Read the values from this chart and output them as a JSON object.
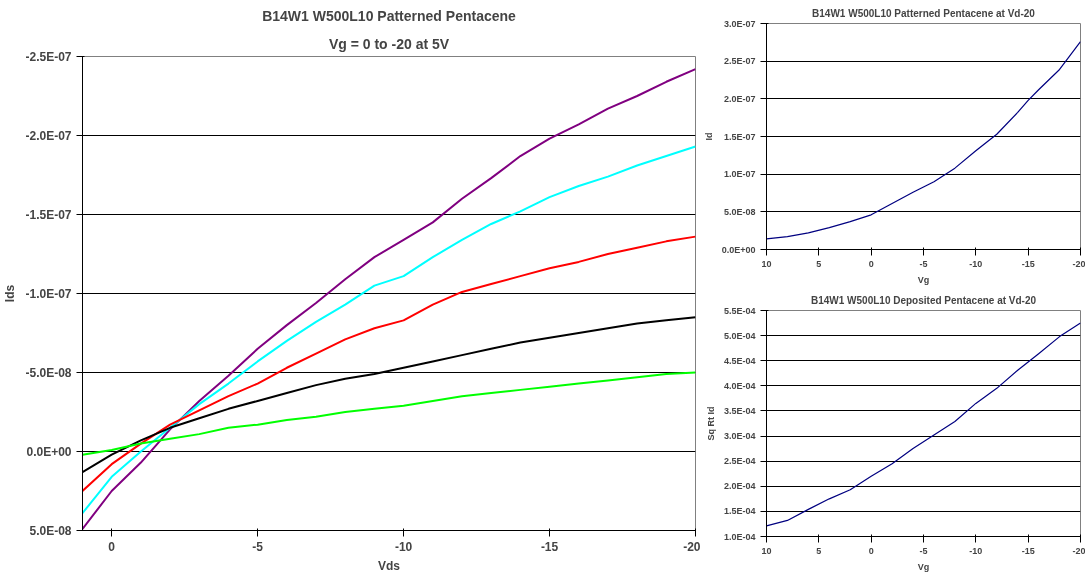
{
  "chart_data": [
    {
      "type": "line",
      "title": "B14W1 W500L10 Patterned Pentacene",
      "subtitle": "Vg = 0 to -20 at 5V",
      "xlabel": "Vds",
      "ylabel": "Ids",
      "x": [
        1,
        0,
        -1,
        -2,
        -3,
        -4,
        -5,
        -6,
        -7,
        -8,
        -9,
        -10,
        -11,
        -12,
        -13,
        -14,
        -15,
        -16,
        -17,
        -18,
        -19,
        -20
      ],
      "series": [
        {
          "color": "#800080",
          "values": [
            4.9e-08,
            2.5e-08,
            7e-09,
            -1.4e-08,
            -3.2e-08,
            -4.8e-08,
            -6.5e-08,
            -8e-08,
            -9.4e-08,
            -1.09e-07,
            -1.23e-07,
            -1.34e-07,
            -1.45e-07,
            -1.6e-07,
            -1.73e-07,
            -1.87e-07,
            -1.98e-07,
            -2.07e-07,
            -2.17e-07,
            -2.25e-07,
            -2.34e-07,
            -2.42e-07
          ]
        },
        {
          "color": "#00ffff",
          "values": [
            3.9e-08,
            1.6e-08,
            0.0,
            -1.5e-08,
            -3e-08,
            -4.3e-08,
            -5.7e-08,
            -7e-08,
            -8.2e-08,
            -9.3e-08,
            -1.05e-07,
            -1.11e-07,
            -1.23e-07,
            -1.34e-07,
            -1.44e-07,
            -1.52e-07,
            -1.61e-07,
            -1.68e-07,
            -1.74e-07,
            -1.81e-07,
            -1.87e-07,
            -1.93e-07
          ]
        },
        {
          "color": "#ff0000",
          "values": [
            2.5e-08,
            8e-09,
            -5e-09,
            -1.7e-08,
            -2.6e-08,
            -3.5e-08,
            -4.3e-08,
            -5.3e-08,
            -6.2e-08,
            -7.1e-08,
            -7.8e-08,
            -8.3e-08,
            -9.3e-08,
            -1.01e-07,
            -1.06e-07,
            -1.11e-07,
            -1.16e-07,
            -1.2e-07,
            -1.25e-07,
            -1.29e-07,
            -1.33e-07,
            -1.36e-07
          ]
        },
        {
          "color": "#000000",
          "values": [
            1.3e-08,
            2e-09,
            -7e-09,
            -1.5e-08,
            -2.1e-08,
            -2.7e-08,
            -3.2e-08,
            -3.7e-08,
            -4.2e-08,
            -4.6e-08,
            -4.9e-08,
            -5.3e-08,
            -5.7e-08,
            -6.1e-08,
            -6.5e-08,
            -6.9e-08,
            -7.2e-08,
            -7.5e-08,
            -7.8e-08,
            -8.1e-08,
            -8.3e-08,
            -8.5e-08
          ]
        },
        {
          "color": "#00ff00",
          "values": [
            2e-09,
            -1e-09,
            -5e-09,
            -8e-09,
            -1.1e-08,
            -1.5e-08,
            -1.7e-08,
            -2e-08,
            -2.2e-08,
            -2.5e-08,
            -2.7e-08,
            -2.9e-08,
            -3.2e-08,
            -3.5e-08,
            -3.7e-08,
            -3.9e-08,
            -4.1e-08,
            -4.3e-08,
            -4.5e-08,
            -4.7e-08,
            -4.9e-08,
            -5e-08
          ]
        }
      ],
      "xlim": [
        1,
        -20
      ],
      "ylim": [
        5e-08,
        -2.5e-07
      ],
      "xticks": [
        0,
        -5,
        -10,
        -15,
        -20
      ],
      "yticks": [
        {
          "value": -2.5e-07,
          "label": "-2.5E-07"
        },
        {
          "value": -2e-07,
          "label": "-2.0E-07"
        },
        {
          "value": -1.5e-07,
          "label": "-1.5E-07"
        },
        {
          "value": -1e-07,
          "label": "-1.0E-07"
        },
        {
          "value": -5e-08,
          "label": "-5.0E-08"
        },
        {
          "value": 0,
          "label": "0.0E+00"
        },
        {
          "value": 5e-08,
          "label": "5.0E-08"
        }
      ],
      "grid": "y"
    },
    {
      "type": "line",
      "title": "B14W1 W500L10 Patterned Pentacene at Vd-20",
      "xlabel": "Vg",
      "ylabel": "Id",
      "x": [
        10,
        8,
        6,
        4,
        2,
        0,
        -2,
        -4,
        -6,
        -8,
        -10,
        -12,
        -14,
        -15,
        -16,
        -18,
        -20
      ],
      "series": [
        {
          "color": "#000080",
          "values": [
            1.4e-08,
            1.7e-08,
            2.2e-08,
            2.9e-08,
            3.7e-08,
            4.6e-08,
            6.1e-08,
            7.6e-08,
            9e-08,
            1.08e-07,
            1.31e-07,
            1.53e-07,
            1.82e-07,
            1.98e-07,
            2.12e-07,
            2.39e-07,
            2.76e-07
          ]
        }
      ],
      "xlim": [
        10,
        -20
      ],
      "ylim": [
        0,
        3e-07
      ],
      "xticks": [
        10,
        5,
        0,
        -5,
        -10,
        -15,
        -20
      ],
      "yticks": [
        {
          "value": 0,
          "label": "0.0E+00"
        },
        {
          "value": 5e-08,
          "label": "5.0E-08"
        },
        {
          "value": 1e-07,
          "label": "1.0E-07"
        },
        {
          "value": 1.5e-07,
          "label": "1.5E-07"
        },
        {
          "value": 2e-07,
          "label": "2.0E-07"
        },
        {
          "value": 2.5e-07,
          "label": "2.5E-07"
        },
        {
          "value": 3e-07,
          "label": "3.0E-07"
        }
      ],
      "grid": "y"
    },
    {
      "type": "line",
      "title": "B14W1 W500L10 Deposited Pentacene at Vd-20",
      "xlabel": "Vg",
      "ylabel": "Sq Rt Id",
      "x": [
        10,
        8,
        6,
        4,
        2,
        0,
        -2,
        -4,
        -6,
        -8,
        -10,
        -12,
        -14,
        -16,
        -18,
        -20
      ],
      "series": [
        {
          "color": "#000080",
          "values": [
            0.000121,
            0.000132,
            0.000154,
            0.000175,
            0.000193,
            0.00022,
            0.000245,
            0.000275,
            0.000302,
            0.000329,
            0.000365,
            0.000395,
            0.000431,
            0.000464,
            0.000498,
            0.000525
          ]
        }
      ],
      "xlim": [
        10,
        -20
      ],
      "ylim": [
        0.0001,
        0.00055
      ],
      "xticks": [
        10,
        5,
        0,
        -5,
        -10,
        -15,
        -20
      ],
      "yticks": [
        {
          "value": 0.0001,
          "label": "1.0E-04"
        },
        {
          "value": 0.00015,
          "label": "1.5E-04"
        },
        {
          "value": 0.0002,
          "label": "2.0E-04"
        },
        {
          "value": 0.00025,
          "label": "2.5E-04"
        },
        {
          "value": 0.0003,
          "label": "3.0E-04"
        },
        {
          "value": 0.00035,
          "label": "3.5E-04"
        },
        {
          "value": 0.0004,
          "label": "4.0E-04"
        },
        {
          "value": 0.00045,
          "label": "4.5E-04"
        },
        {
          "value": 0.0005,
          "label": "5.0E-04"
        },
        {
          "value": 0.00055,
          "label": "5.5E-04"
        }
      ],
      "grid": "y"
    }
  ]
}
